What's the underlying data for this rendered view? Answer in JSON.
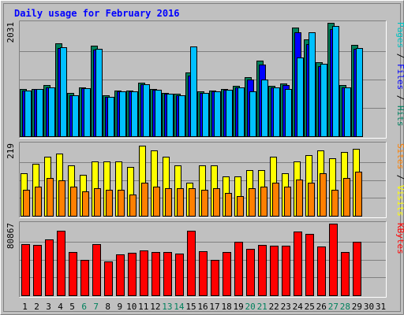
{
  "chart_data": {
    "type": "bar",
    "title": "Daily usage for February 2016",
    "days": [
      "1",
      "2",
      "3",
      "4",
      "5",
      "6",
      "7",
      "8",
      "9",
      "10",
      "11",
      "12",
      "13",
      "14",
      "15",
      "16",
      "17",
      "18",
      "19",
      "20",
      "21",
      "22",
      "23",
      "24",
      "25",
      "26",
      "27",
      "28",
      "29",
      "30",
      "31"
    ],
    "weekend_days": [
      "6",
      "7",
      "13",
      "14",
      "20",
      "21",
      "27",
      "28"
    ],
    "panels": [
      {
        "name": "hits-files-pages",
        "ymax_label": "2031",
        "ymax": 2031,
        "axis_label_parts": [
          {
            "text": "Pages",
            "color": "#00c0c0"
          },
          {
            "text": " / ",
            "color": "#000000"
          },
          {
            "text": "Files",
            "color": "#0000ff"
          },
          {
            "text": " / ",
            "color": "#000000"
          },
          {
            "text": "Hits",
            "color": "#008060"
          }
        ],
        "series": [
          {
            "name": "Hits",
            "color": "#00805c",
            "values": [
              840,
              850,
              910,
              1660,
              770,
              880,
              1620,
              740,
              820,
              820,
              960,
              850,
              780,
              760,
              1140,
              800,
              820,
              850,
              900,
              1060,
              1360,
              900,
              940,
              1940,
              1740,
              1320,
              2031,
              920,
              1640,
              0,
              0
            ]
          },
          {
            "name": "Files",
            "color": "#0000ff",
            "values": [
              820,
              840,
              880,
              1580,
              740,
              860,
              1550,
              710,
              800,
              800,
              930,
              830,
              760,
              740,
              1080,
              780,
              800,
              830,
              870,
              1010,
              1280,
              870,
              910,
              1860,
              1650,
              1260,
              1920,
              880,
              1560,
              0,
              0
            ]
          },
          {
            "name": "Pages",
            "color": "#00c0ff",
            "values": [
              820,
              840,
              880,
              1600,
              740,
              860,
              1560,
              710,
              800,
              800,
              930,
              830,
              760,
              740,
              1610,
              770,
              800,
              830,
              870,
              800,
              1020,
              870,
              850,
              1410,
              1860,
              1300,
              1970,
              870,
              1580,
              0,
              0
            ]
          }
        ]
      },
      {
        "name": "visits-sites",
        "ymax_label": "219",
        "ymax": 219,
        "axis_label_parts": [
          {
            "text": "Sites",
            "color": "#ff8000"
          },
          {
            "text": " / ",
            "color": "#000000"
          },
          {
            "text": "Visits",
            "color": "#ffff00"
          }
        ],
        "series": [
          {
            "name": "Visits",
            "color": "#ffff00",
            "values": [
              130,
              160,
              180,
              190,
              155,
              125,
              165,
              165,
              165,
              150,
              215,
              200,
              180,
              155,
              100,
              155,
              155,
              120,
              120,
              140,
              140,
              180,
              130,
              165,
              185,
              200,
              175,
              195,
              205,
              0,
              0
            ]
          },
          {
            "name": "Sites",
            "color": "#ff8000",
            "values": [
              80,
              90,
              115,
              108,
              90,
              75,
              85,
              80,
              80,
              65,
              100,
              88,
              85,
              85,
              85,
              80,
              85,
              70,
              60,
              85,
              88,
              100,
              90,
              110,
              100,
              130,
              80,
              115,
              135,
              0,
              0
            ]
          }
        ]
      },
      {
        "name": "kbytes",
        "ymax_label": "80867",
        "ymax": 80867,
        "axis_label_parts": [
          {
            "text": "KBytes",
            "color": "#ff0000"
          }
        ],
        "series": [
          {
            "name": "KBytes",
            "color": "#ff0000",
            "values": [
              58000,
              57000,
              63000,
              73000,
              49000,
              40000,
              58000,
              38000,
              46000,
              48000,
              51000,
              49000,
              49000,
              47000,
              73000,
              50000,
              40000,
              49000,
              60000,
              52000,
              57000,
              56000,
              56000,
              72000,
              69000,
              55000,
              80867,
              49000,
              60000,
              0,
              0
            ]
          }
        ]
      }
    ],
    "colors": {
      "background": "#c0c0c0",
      "title": "#0000ff",
      "border_dark": "#808080",
      "border_light": "#ffffff",
      "gridline": "#808080",
      "weekday_label": "#000000",
      "weekend_label": "#00805c"
    }
  }
}
